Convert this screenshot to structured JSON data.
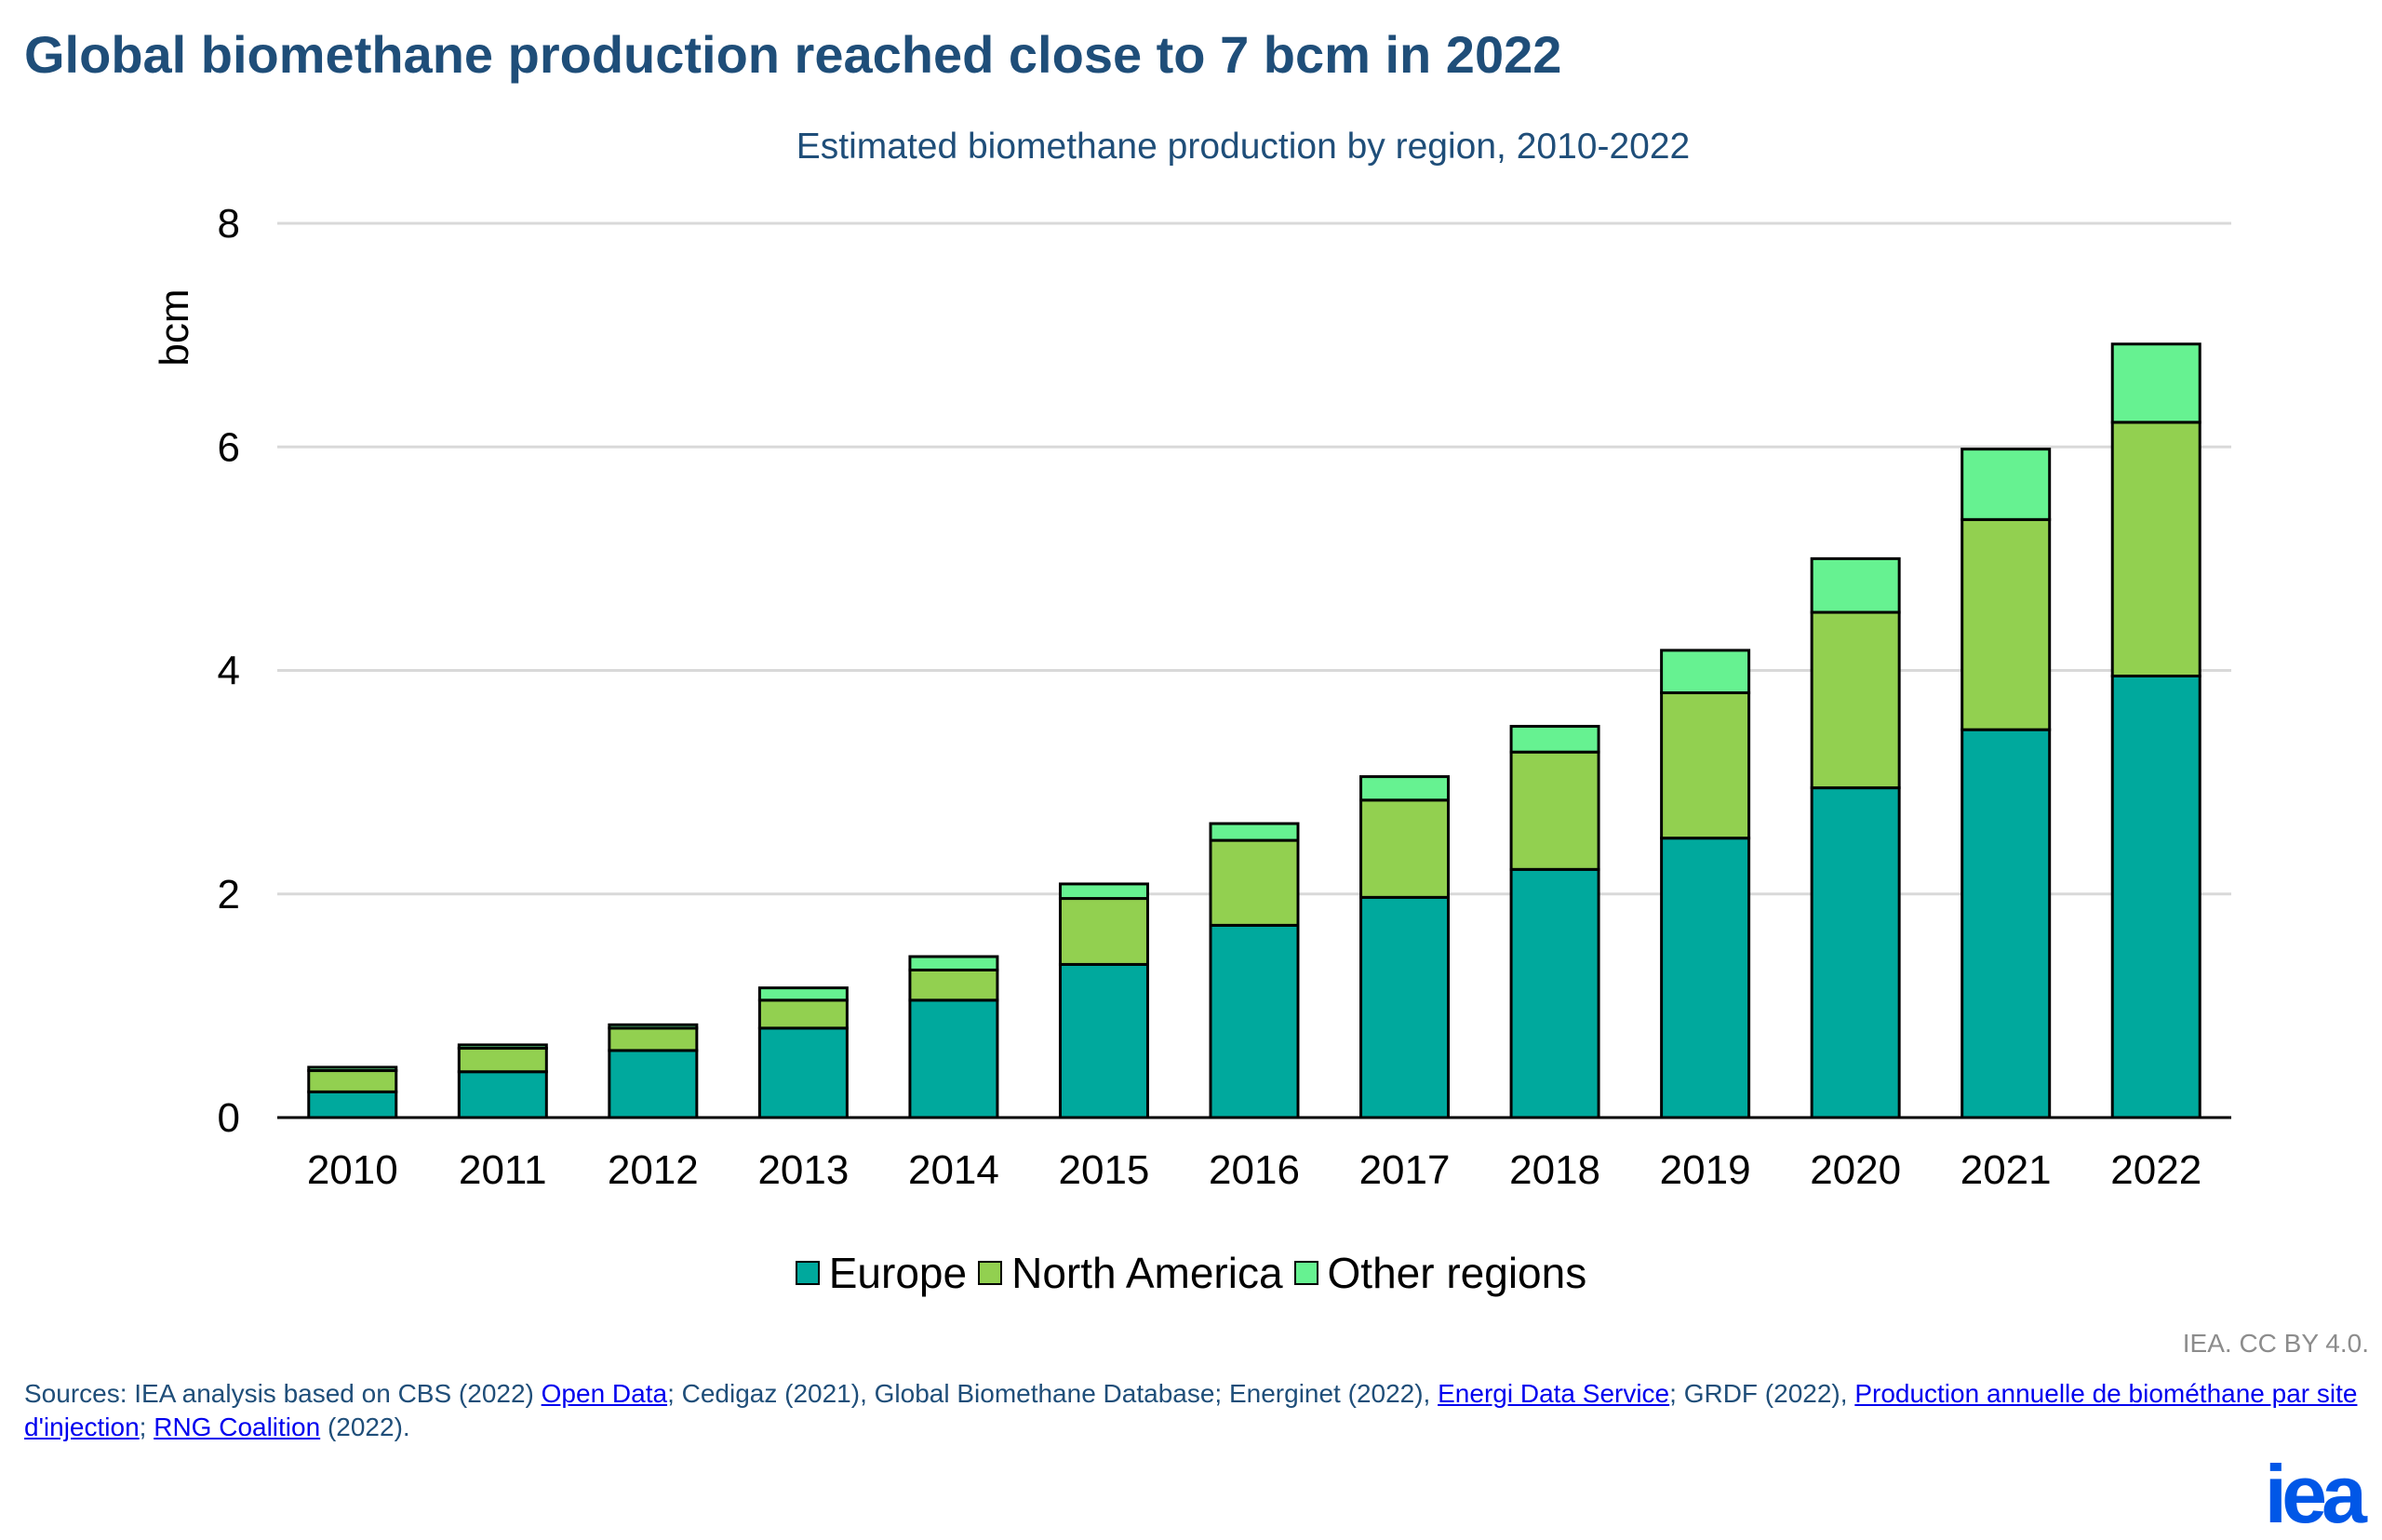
{
  "header": {
    "title": "Global biomethane production reached close to 7 bcm in 2022",
    "subtitle": "Estimated biomethane production by region, 2010-2022"
  },
  "chart_data": {
    "type": "bar",
    "stacked": true,
    "categories": [
      "2010",
      "2011",
      "2012",
      "2013",
      "2014",
      "2015",
      "2016",
      "2017",
      "2018",
      "2019",
      "2020",
      "2021",
      "2022"
    ],
    "series": [
      {
        "name": "Europe",
        "color": "#00a99d",
        "values": [
          0.23,
          0.41,
          0.6,
          0.8,
          1.05,
          1.37,
          1.72,
          1.97,
          2.22,
          2.5,
          2.95,
          3.47,
          3.95
        ]
      },
      {
        "name": "North America",
        "color": "#92d050",
        "values": [
          0.19,
          0.21,
          0.2,
          0.25,
          0.27,
          0.59,
          0.76,
          0.87,
          1.05,
          1.3,
          1.57,
          1.88,
          2.27
        ]
      },
      {
        "name": "Other regions",
        "color": "#66f291",
        "values": [
          0.03,
          0.03,
          0.03,
          0.11,
          0.12,
          0.13,
          0.15,
          0.21,
          0.23,
          0.38,
          0.48,
          0.63,
          0.7
        ]
      }
    ],
    "ylabel": "bcm",
    "xlabel": "",
    "ylim": [
      0,
      8
    ],
    "yticks": [
      0,
      2,
      4,
      6,
      8
    ],
    "grid": true,
    "legend_position": "bottom-center"
  },
  "footer": {
    "credit": "IEA. CC BY 4.0.",
    "sources": [
      {
        "text": "Sources: IEA analysis based on CBS (2022) ",
        "link": false
      },
      {
        "text": "Open Data",
        "link": true
      },
      {
        "text": "; Cedigaz (2021), Global Biomethane Database; Energinet (2022), ",
        "link": false
      },
      {
        "text": "Energi Data Service",
        "link": true
      },
      {
        "text": "; GRDF (2022), ",
        "link": false
      },
      {
        "text": "Production annuelle de biométhane par site d'injection",
        "link": true
      },
      {
        "text": "; ",
        "link": false
      },
      {
        "text": "RNG Coalition",
        "link": true
      },
      {
        "text": " (2022).",
        "link": false
      }
    ],
    "logo_text": "iea"
  }
}
